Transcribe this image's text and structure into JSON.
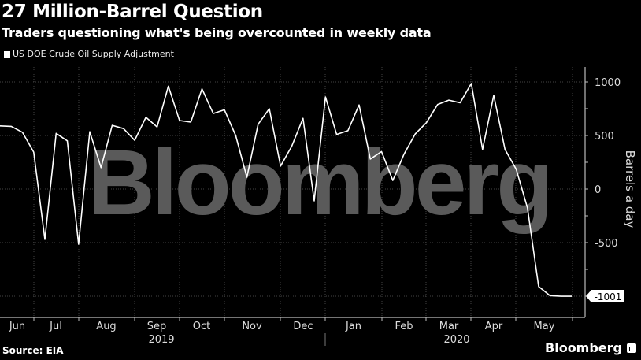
{
  "header": {
    "title": "27 Million-Barrel Question",
    "subtitle": "Traders questioning what's being overcounted in weekly data"
  },
  "legend": {
    "label": "US DOE Crude Oil Supply Adjustment",
    "color": "#ffffff"
  },
  "axis": {
    "ylabel": "Barrels a day"
  },
  "footer": {
    "source": "Source: EIA",
    "brand": "Bloomberg"
  },
  "watermark": "Bloomberg",
  "last_value_label": "-1001",
  "chart_data": {
    "type": "line",
    "title": "27 Million-Barrel Question",
    "subtitle": "Traders questioning what's being overcounted in weekly data",
    "xlabel": "",
    "ylabel": "Barrels a day",
    "ylim": [
      -1100,
      1100
    ],
    "yticks": [
      1000,
      500,
      0,
      -500
    ],
    "grid": true,
    "legend_position": "top-left",
    "x_month_labels": [
      "Jun",
      "Jul",
      "Aug",
      "Sep",
      "Oct",
      "Nov",
      "Dec",
      "Jan",
      "Feb",
      "Mar",
      "Apr",
      "May"
    ],
    "x_year_labels": [
      "2019",
      "2020"
    ],
    "last_value_annotation": -1001,
    "series": [
      {
        "name": "US DOE Crude Oil Supply Adjustment",
        "color": "#ffffff",
        "frequency": "weekly",
        "values": [
          590,
          585,
          530,
          345,
          -470,
          520,
          450,
          -515,
          535,
          200,
          595,
          565,
          455,
          670,
          580,
          960,
          640,
          625,
          935,
          705,
          740,
          500,
          110,
          605,
          750,
          215,
          400,
          660,
          -110,
          860,
          510,
          545,
          785,
          280,
          350,
          80,
          325,
          515,
          620,
          790,
          830,
          805,
          985,
          370,
          875,
          370,
          185,
          -175,
          -910,
          -995,
          -1001,
          -1001
        ]
      }
    ]
  }
}
